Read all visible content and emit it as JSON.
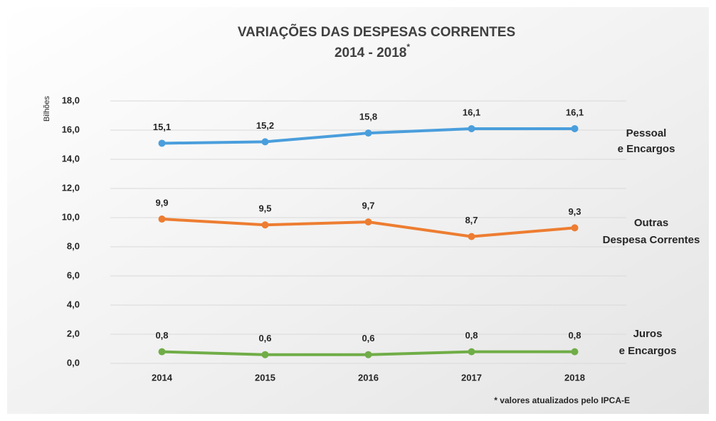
{
  "chart_data": {
    "type": "line",
    "title": "VARIAÇÕES DAS DESPESAS CORRENTES",
    "subtitle": "2014 - 2018",
    "subtitle_marker": "*",
    "y_label": "Bilhões",
    "footnote": "* valores atualizados pelo IPCA-E",
    "categories": [
      "2014",
      "2015",
      "2016",
      "2017",
      "2018"
    ],
    "ylim": [
      0,
      18
    ],
    "yticks": [
      {
        "value": 0,
        "label": "0,0"
      },
      {
        "value": 2,
        "label": "2,0"
      },
      {
        "value": 4,
        "label": "4,0"
      },
      {
        "value": 6,
        "label": "6,0"
      },
      {
        "value": 8,
        "label": "8,0"
      },
      {
        "value": 10,
        "label": "10,0"
      },
      {
        "value": 12,
        "label": "12,0"
      },
      {
        "value": 14,
        "label": "14,0"
      },
      {
        "value": 16,
        "label": "16,0"
      },
      {
        "value": 18,
        "label": "18,0"
      }
    ],
    "grid": true,
    "series": [
      {
        "name": [
          "Pessoal",
          "e Encargos"
        ],
        "color": "#4a9edc",
        "label_color": "#1f7fcf",
        "values": [
          15.1,
          15.2,
          15.8,
          16.1,
          16.1
        ],
        "value_labels": [
          "15,1",
          "15,2",
          "15,8",
          "16,1",
          "16,1"
        ]
      },
      {
        "name": [
          "Outras",
          "Despesa Correntes"
        ],
        "color": "#ed7d31",
        "label_color": "#c55a11",
        "values": [
          9.9,
          9.5,
          9.7,
          8.7,
          9.3
        ],
        "value_labels": [
          "9,9",
          "9,5",
          "9,7",
          "8,7",
          "9,3"
        ]
      },
      {
        "name": [
          "Juros",
          "e Encargos"
        ],
        "color": "#70ad47",
        "label_color": "#548235",
        "values": [
          0.8,
          0.6,
          0.6,
          0.8,
          0.8
        ],
        "value_labels": [
          "0,8",
          "0,6",
          "0,6",
          "0,8",
          "0,8"
        ]
      }
    ]
  }
}
